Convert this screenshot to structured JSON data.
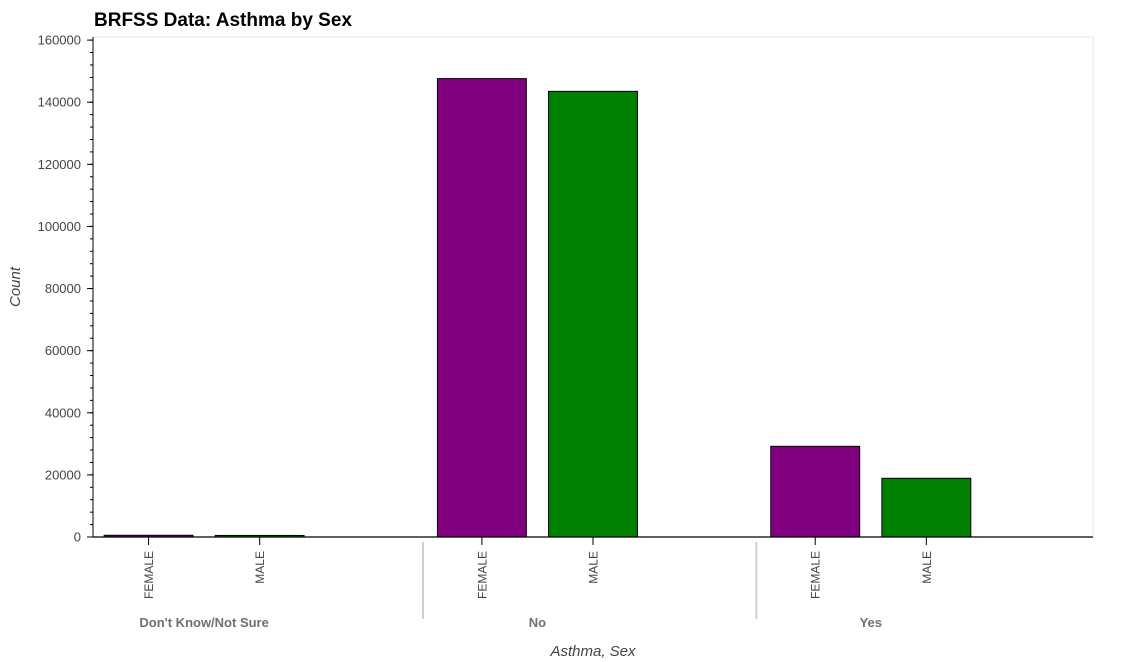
{
  "chart_data": {
    "type": "bar",
    "title": "BRFSS Data: Asthma by Sex",
    "xlabel": "Asthma, Sex",
    "ylabel": "Count",
    "ylim": [
      0,
      161000
    ],
    "yticks": [
      0,
      20000,
      40000,
      60000,
      80000,
      100000,
      120000,
      140000,
      160000
    ],
    "grid": false,
    "legend": "none",
    "groups": [
      {
        "label": "Don't Know/Not Sure",
        "bars": [
          {
            "category": "FEMALE",
            "value": 550
          },
          {
            "category": "MALE",
            "value": 500
          }
        ]
      },
      {
        "label": "No",
        "bars": [
          {
            "category": "FEMALE",
            "value": 147600
          },
          {
            "category": "MALE",
            "value": 143500
          }
        ]
      },
      {
        "label": "Yes",
        "bars": [
          {
            "category": "FEMALE",
            "value": 29200
          },
          {
            "category": "MALE",
            "value": 18900
          }
        ]
      }
    ],
    "colors": {
      "FEMALE": "#800080",
      "MALE": "#008000"
    },
    "bar_outline": "#000000"
  }
}
